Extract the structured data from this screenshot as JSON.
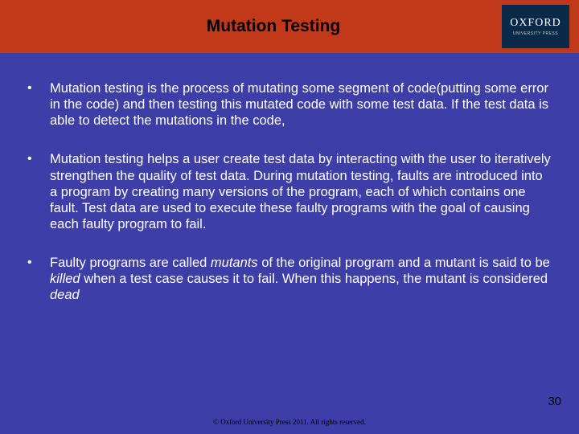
{
  "colors": {
    "slide_bg": "#3d3ea8",
    "header_bg": "#c2391a",
    "logo_bg": "#0b2a4a",
    "text": "#ffffff",
    "title_text": "#000000",
    "footer_text": "#000000"
  },
  "header": {
    "title": "Mutation Testing",
    "logo_main": "OXFORD",
    "logo_sub": "UNIVERSITY PRESS"
  },
  "bullets": [
    {
      "segments": [
        {
          "t": "Mutation testing is the process of mutating some segment of code(putting some error in the code) and then testing this mutated code with some test data. If the test data is able to detect the mutations in the code,",
          "i": false
        }
      ]
    },
    {
      "segments": [
        {
          "t": "Mutation testing helps a user create test data by interacting with the user to iteratively strengthen the quality of test data. During mutation testing, faults are introduced into a program by creating many versions of the program, each of which contains one fault. Test data are used to execute these faulty programs with the goal of causing each faulty program to fail.",
          "i": false
        }
      ]
    },
    {
      "segments": [
        {
          "t": "Faulty programs are called ",
          "i": false
        },
        {
          "t": "mutants",
          "i": true
        },
        {
          "t": " of the original program and a mutant is said to be ",
          "i": false
        },
        {
          "t": "killed",
          "i": true
        },
        {
          "t": " when a test case causes it to fail. When this happens, the mutant is considered ",
          "i": false
        },
        {
          "t": "dead",
          "i": true
        }
      ]
    }
  ],
  "page_number": "30",
  "footer": "© Oxford University Press 2011. All rights reserved."
}
